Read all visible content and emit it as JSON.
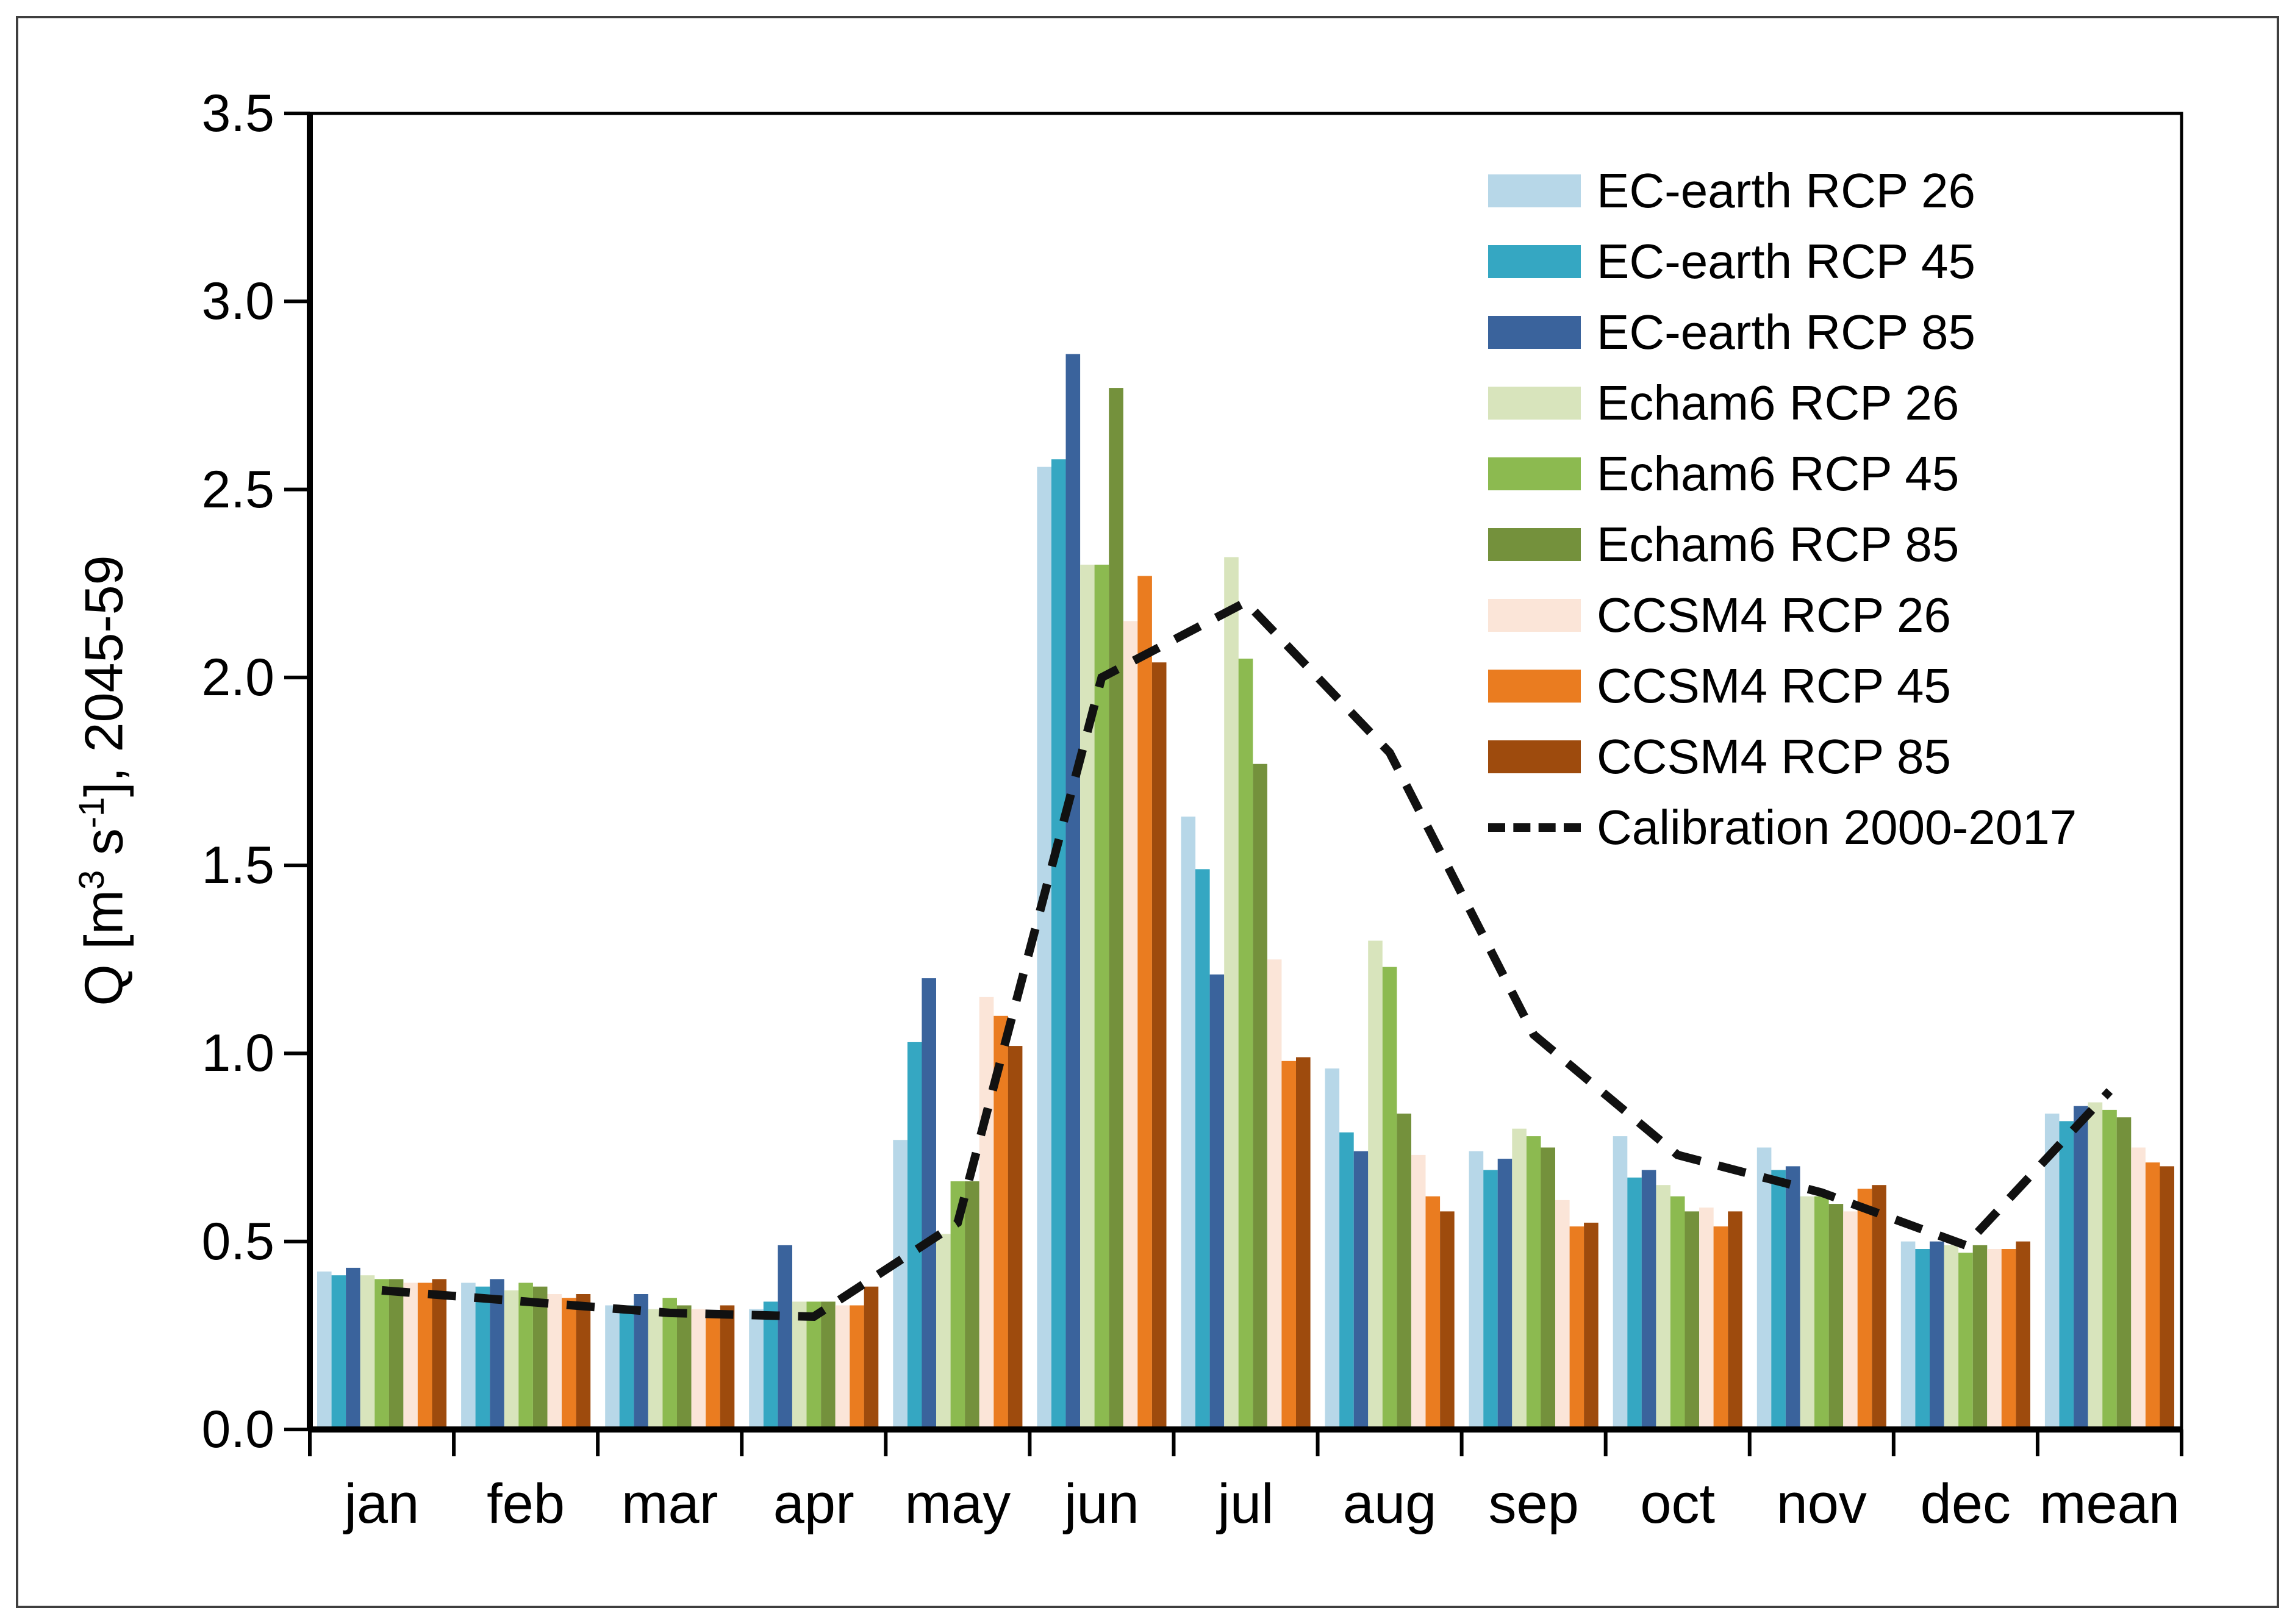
{
  "figure": {
    "ylabel_parts": [
      {
        "type": "text",
        "value": "Q [m"
      },
      {
        "type": "sup",
        "value": "3"
      },
      {
        "type": "text",
        "value": " s"
      },
      {
        "type": "sup",
        "value": "-1"
      },
      {
        "type": "text",
        "value": "], 2045-59"
      }
    ]
  },
  "chart_data": {
    "type": "bar",
    "title": "",
    "xlabel": "",
    "ylabel": "Q [m3 s-1], 2045-59",
    "ylim": [
      0.0,
      3.5
    ],
    "grid": false,
    "legend_position": "top-right",
    "y_tick_labels": [
      "0.0",
      "0.5",
      "1.0",
      "1.5",
      "2.0",
      "2.5",
      "3.0",
      "3.5"
    ],
    "categories": [
      "jan",
      "feb",
      "mar",
      "apr",
      "may",
      "jun",
      "jul",
      "aug",
      "sep",
      "oct",
      "nov",
      "dec",
      "mean"
    ],
    "series": [
      {
        "name": "EC-earth RCP 26",
        "color": "#b7d7e8",
        "values": [
          0.42,
          0.39,
          0.33,
          0.32,
          0.77,
          2.56,
          1.63,
          0.96,
          0.74,
          0.78,
          0.75,
          0.5,
          0.84
        ]
      },
      {
        "name": "EC-earth RCP 45",
        "color": "#35a7c2",
        "values": [
          0.41,
          0.38,
          0.33,
          0.34,
          1.03,
          2.58,
          1.49,
          0.79,
          0.69,
          0.67,
          0.69,
          0.48,
          0.82
        ]
      },
      {
        "name": "EC-earth RCP 85",
        "color": "#3a639c",
        "values": [
          0.43,
          0.4,
          0.36,
          0.49,
          1.2,
          2.86,
          1.21,
          0.74,
          0.72,
          0.69,
          0.7,
          0.5,
          0.86
        ]
      },
      {
        "name": "Echam6 RCP 26",
        "color": "#d8e4bc",
        "values": [
          0.41,
          0.37,
          0.32,
          0.34,
          0.52,
          2.3,
          2.32,
          1.3,
          0.8,
          0.65,
          0.62,
          0.49,
          0.87
        ]
      },
      {
        "name": "Echam6 RCP 45",
        "color": "#8cba50",
        "values": [
          0.4,
          0.39,
          0.35,
          0.34,
          0.66,
          2.3,
          2.05,
          1.23,
          0.78,
          0.62,
          0.62,
          0.47,
          0.85
        ]
      },
      {
        "name": "Echam6 RCP 85",
        "color": "#74913c",
        "values": [
          0.4,
          0.38,
          0.33,
          0.34,
          0.66,
          2.77,
          1.77,
          0.84,
          0.75,
          0.58,
          0.6,
          0.49,
          0.83
        ]
      },
      {
        "name": "CCSM4 RCP 26",
        "color": "#fbe5d8",
        "values": [
          0.39,
          0.36,
          0.32,
          0.33,
          1.15,
          2.15,
          1.25,
          0.73,
          0.61,
          0.59,
          0.58,
          0.48,
          0.75
        ]
      },
      {
        "name": "CCSM4 RCP 45",
        "color": "#ea7c20",
        "values": [
          0.39,
          0.35,
          0.31,
          0.33,
          1.1,
          2.27,
          0.98,
          0.62,
          0.54,
          0.54,
          0.64,
          0.48,
          0.71
        ]
      },
      {
        "name": "CCSM4 RCP 85",
        "color": "#9e4b0d",
        "values": [
          0.4,
          0.36,
          0.33,
          0.38,
          1.02,
          2.04,
          0.99,
          0.58,
          0.55,
          0.58,
          0.65,
          0.5,
          0.7
        ]
      }
    ],
    "line_series": {
      "name": "Calibration 2000-2017",
      "color": "#111111",
      "style": "dashed",
      "values": [
        0.37,
        0.34,
        0.31,
        0.3,
        0.55,
        2.0,
        2.2,
        1.8,
        1.05,
        0.73,
        0.63,
        0.49,
        0.9
      ]
    }
  }
}
